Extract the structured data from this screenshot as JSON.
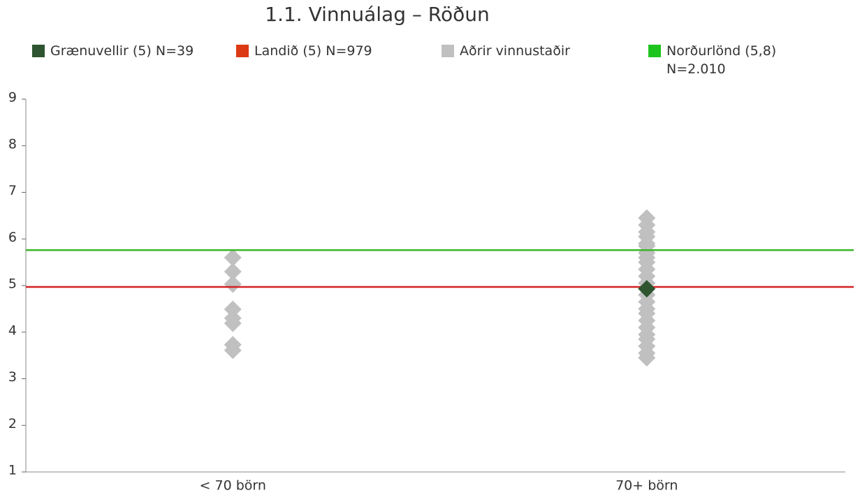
{
  "chart_data": {
    "type": "scatter",
    "title": "1.1. Vinnuálag – Röðun",
    "categories": [
      "< 70 börn",
      "70+ börn"
    ],
    "ylim": [
      1,
      9
    ],
    "yticks": [
      1,
      2,
      3,
      4,
      5,
      6,
      7,
      8,
      9
    ],
    "series": [
      {
        "name": "Grænuvellir (5) N=39",
        "color": "#2e5530",
        "style": "marker",
        "values": [
          null,
          4.93
        ]
      },
      {
        "name": "Landið (5) N=979",
        "color": "#dc3a12",
        "style": "line",
        "value": 4.97,
        "line_color": "#d42020"
      },
      {
        "name": "Aðrir vinnustaðir",
        "color": "#c0c0c0",
        "style": "marker",
        "values": [
          [
            5.6,
            5.3,
            5.03,
            4.49,
            4.3,
            4.19,
            3.73,
            3.61
          ],
          [
            6.45,
            6.3,
            6.15,
            6.05,
            5.9,
            5.85,
            5.7,
            5.6,
            5.5,
            5.35,
            5.2,
            5.05,
            4.8,
            4.65,
            4.5,
            4.4,
            4.25,
            4.1,
            3.95,
            3.85,
            3.7,
            3.55,
            3.45
          ]
        ]
      },
      {
        "name": "Norðurlönd (5,8) N=2.010",
        "color": "#1ec41e",
        "style": "line",
        "value": 5.76,
        "line_color": "#3cb52a"
      }
    ]
  }
}
